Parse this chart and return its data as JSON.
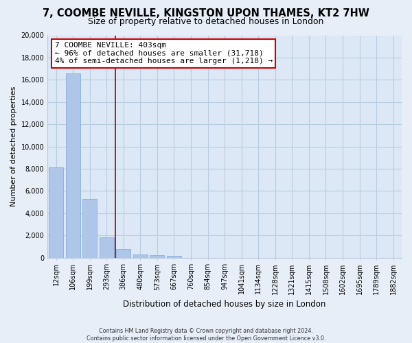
{
  "title": "7, COOMBE NEVILLE, KINGSTON UPON THAMES, KT2 7HW",
  "subtitle": "Size of property relative to detached houses in London",
  "xlabel": "Distribution of detached houses by size in London",
  "ylabel": "Number of detached properties",
  "bar_labels": [
    "12sqm",
    "106sqm",
    "199sqm",
    "293sqm",
    "386sqm",
    "480sqm",
    "573sqm",
    "667sqm",
    "760sqm",
    "854sqm",
    "947sqm",
    "1041sqm",
    "1134sqm",
    "1228sqm",
    "1321sqm",
    "1415sqm",
    "1508sqm",
    "1602sqm",
    "1695sqm",
    "1789sqm",
    "1882sqm"
  ],
  "bar_values": [
    8100,
    16600,
    5300,
    1850,
    750,
    300,
    200,
    150,
    0,
    0,
    0,
    0,
    0,
    0,
    0,
    0,
    0,
    0,
    0,
    0,
    0
  ],
  "bar_color": "#aec6e8",
  "bar_edge_color": "#7aa8d8",
  "vline_color": "#aa0000",
  "vline_x": 3.5,
  "annotation_line1": "7 COOMBE NEVILLE: 403sqm",
  "annotation_line2": "← 96% of detached houses are smaller (31,718)",
  "annotation_line3": "4% of semi-detached houses are larger (1,218) →",
  "ylim": [
    0,
    20000
  ],
  "yticks": [
    0,
    2000,
    4000,
    6000,
    8000,
    10000,
    12000,
    14000,
    16000,
    18000,
    20000
  ],
  "background_color": "#e8eef8",
  "plot_bg_color": "#dce8f5",
  "grid_color": "#b8cce0",
  "footer_text": "Contains HM Land Registry data © Crown copyright and database right 2024.\nContains public sector information licensed under the Open Government Licence v3.0.",
  "title_fontsize": 10.5,
  "subtitle_fontsize": 9,
  "tick_fontsize": 7,
  "ylabel_fontsize": 8,
  "xlabel_fontsize": 8.5,
  "ann_fontsize": 8
}
